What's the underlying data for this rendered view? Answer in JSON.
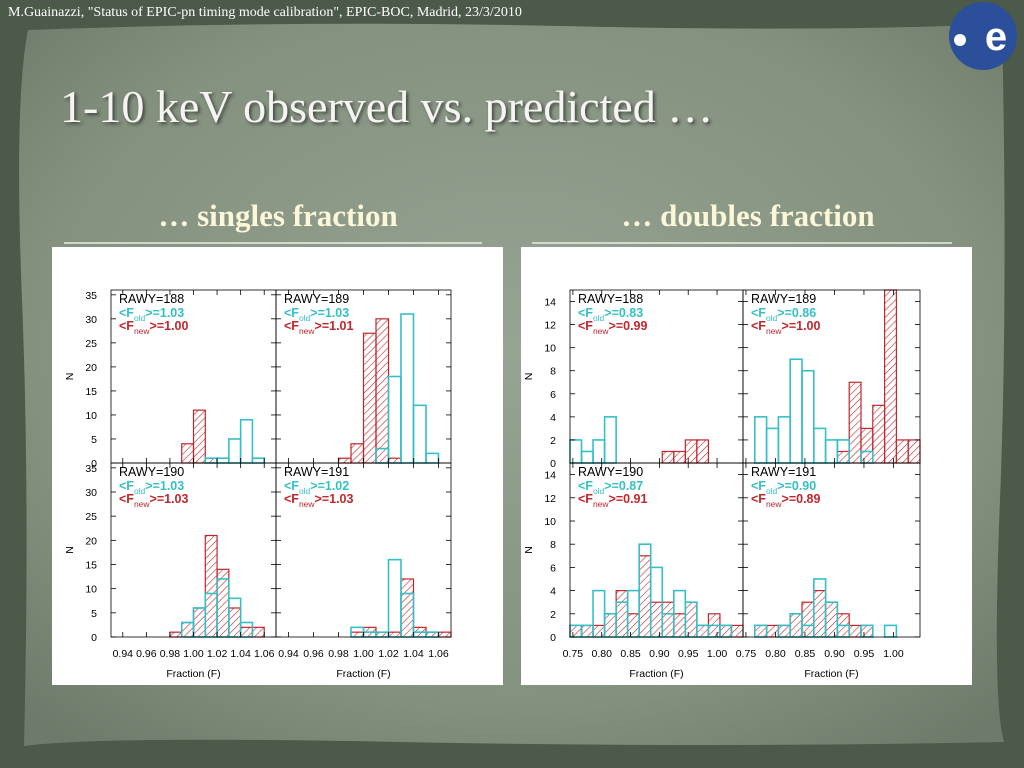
{
  "header": "M.Guainazzi, \"Status of EPIC-pn timing mode calibration\", EPIC-BOC, Madrid, 23/3/2010",
  "title": "1-10 keV observed vs. predicted …",
  "subtitles": [
    "… singles fraction",
    "… doubles fraction"
  ],
  "chart_data": [
    {
      "type": "histogram",
      "annotation": "RAWY=188",
      "ylabel": "N",
      "xtick_labels": false,
      "ytick_labels": true,
      "bins": [
        0.93,
        0.94,
        0.95,
        0.96,
        0.97,
        0.98,
        0.99,
        1.0,
        1.01,
        1.02,
        1.03,
        1.04,
        1.05,
        1.06,
        1.07
      ],
      "xlim": [
        0.93,
        1.07
      ],
      "ylim": [
        0,
        36
      ],
      "xticks": [
        0.94,
        0.96,
        0.98,
        {
          "value": 1,
          "label": "1.00"
        },
        1.02,
        1.04,
        1.06
      ],
      "yticks": [
        0,
        5,
        10,
        15,
        20,
        25,
        30,
        35
      ],
      "series": [
        {
          "label": [
            "<F",
            "old",
            ">=1.03"
          ],
          "color": "#35bfc6",
          "hatch": false,
          "values": [
            0,
            0,
            0,
            0,
            0,
            0,
            0,
            0,
            1,
            1,
            5,
            9,
            1,
            0
          ]
        },
        {
          "label": [
            "<F",
            "new",
            ">=1.00"
          ],
          "color": "#c0272d",
          "hatch": true,
          "values": [
            0,
            0,
            0,
            0,
            0,
            0,
            4,
            11,
            1,
            0,
            0,
            0,
            0,
            0
          ]
        }
      ]
    },
    {
      "type": "histogram",
      "annotation": "RAWY=189",
      "xtick_labels": false,
      "ytick_labels": false,
      "bins": [
        0.93,
        0.94,
        0.95,
        0.96,
        0.97,
        0.98,
        0.99,
        1.0,
        1.01,
        1.02,
        1.03,
        1.04,
        1.05,
        1.06,
        1.07
      ],
      "xlim": [
        0.93,
        1.07
      ],
      "ylim": [
        0,
        36
      ],
      "xticks": [
        0.94,
        0.96,
        0.98,
        {
          "value": 1,
          "label": "1.00"
        },
        1.02,
        1.04,
        1.06
      ],
      "yticks": [
        0,
        5,
        10,
        15,
        20,
        25,
        30,
        35
      ],
      "series": [
        {
          "label": [
            "<F",
            "old",
            ">=1.03"
          ],
          "color": "#35bfc6",
          "hatch": false,
          "values": [
            0,
            0,
            0,
            0,
            0,
            0,
            0,
            0,
            3,
            18,
            31,
            12,
            2,
            0
          ]
        },
        {
          "label": [
            "<F",
            "new",
            ">=1.01"
          ],
          "color": "#c0272d",
          "hatch": true,
          "values": [
            0,
            0,
            0,
            0,
            0,
            1,
            4,
            27,
            30,
            1,
            0,
            0,
            0,
            0
          ]
        }
      ]
    },
    {
      "type": "histogram",
      "annotation": "RAWY=190",
      "ylabel": "N",
      "xlabel": "Fraction (F)",
      "xtick_labels": true,
      "ytick_labels": true,
      "bins": [
        0.93,
        0.94,
        0.95,
        0.96,
        0.97,
        0.98,
        0.99,
        1.0,
        1.01,
        1.02,
        1.03,
        1.04,
        1.05,
        1.06,
        1.07
      ],
      "xlim": [
        0.93,
        1.07
      ],
      "ylim": [
        0,
        36
      ],
      "xticks": [
        0.94,
        0.96,
        0.98,
        {
          "value": 1,
          "label": "1.00"
        },
        1.02,
        1.04,
        1.06
      ],
      "yticks": [
        0,
        5,
        10,
        15,
        20,
        25,
        30,
        35
      ],
      "series": [
        {
          "label": [
            "<F",
            "old",
            ">=1.03"
          ],
          "color": "#35bfc6",
          "hatch": false,
          "values": [
            0,
            0,
            0,
            0,
            0,
            0,
            3,
            6,
            9,
            12,
            8,
            3,
            0,
            0
          ]
        },
        {
          "label": [
            "<F",
            "new",
            ">=1.03"
          ],
          "color": "#c0272d",
          "hatch": true,
          "values": [
            0,
            0,
            0,
            0,
            0,
            1,
            3,
            6,
            21,
            14,
            6,
            2,
            2,
            0
          ]
        }
      ]
    },
    {
      "type": "histogram",
      "annotation": "RAWY=191",
      "xlabel": "Fraction (F)",
      "xtick_labels": true,
      "ytick_labels": false,
      "bins": [
        0.93,
        0.94,
        0.95,
        0.96,
        0.97,
        0.98,
        0.99,
        1.0,
        1.01,
        1.02,
        1.03,
        1.04,
        1.05,
        1.06,
        1.07
      ],
      "xlim": [
        0.93,
        1.07
      ],
      "ylim": [
        0,
        36
      ],
      "xticks": [
        0.94,
        0.96,
        0.98,
        {
          "value": 1,
          "label": "1.00"
        },
        1.02,
        1.04,
        1.06
      ],
      "yticks": [
        0,
        5,
        10,
        15,
        20,
        25,
        30,
        35
      ],
      "series": [
        {
          "label": [
            "<F",
            "old",
            ">=1.02"
          ],
          "color": "#35bfc6",
          "hatch": false,
          "values": [
            0,
            0,
            0,
            0,
            0,
            0,
            2,
            1,
            1,
            16,
            9,
            1,
            1,
            0
          ]
        },
        {
          "label": [
            "<F",
            "new",
            ">=1.03"
          ],
          "color": "#c0272d",
          "hatch": true,
          "values": [
            0,
            0,
            0,
            0,
            0,
            0,
            1,
            2,
            1,
            1,
            12,
            2,
            1,
            1
          ]
        }
      ]
    },
    {
      "type": "histogram",
      "annotation": "RAWY=188",
      "ylabel": "N",
      "xtick_labels": false,
      "ytick_labels": true,
      "bins": [
        0.745,
        0.765,
        0.785,
        0.805,
        0.825,
        0.845,
        0.865,
        0.885,
        0.905,
        0.925,
        0.945,
        0.965,
        0.985,
        1.005,
        1.025,
        1.045
      ],
      "xlim": [
        0.745,
        1.045
      ],
      "ylim": [
        0,
        15
      ],
      "xticks": [
        0.75,
        {
          "value": 0.8,
          "label": "0.80"
        },
        0.85,
        {
          "value": 0.9,
          "label": "0.90"
        },
        0.95,
        {
          "value": 1,
          "label": "1.00"
        }
      ],
      "yticks": [
        0,
        2,
        4,
        6,
        8,
        10,
        12,
        14
      ],
      "series": [
        {
          "label": [
            "<F",
            "old",
            ">=0.83"
          ],
          "color": "#35bfc6",
          "hatch": false,
          "values": [
            2,
            1,
            2,
            4,
            0,
            0,
            0,
            0,
            0,
            0,
            0,
            0,
            0,
            0,
            0
          ]
        },
        {
          "label": [
            "<F",
            "new",
            ">=0.99"
          ],
          "color": "#c0272d",
          "hatch": true,
          "values": [
            0,
            0,
            0,
            0,
            0,
            0,
            0,
            0,
            1,
            1,
            2,
            2,
            0,
            0,
            0
          ]
        }
      ]
    },
    {
      "type": "histogram",
      "annotation": "RAWY=189",
      "xtick_labels": false,
      "ytick_labels": false,
      "bins": [
        0.745,
        0.765,
        0.785,
        0.805,
        0.825,
        0.845,
        0.865,
        0.885,
        0.905,
        0.925,
        0.945,
        0.965,
        0.985,
        1.005,
        1.025,
        1.045
      ],
      "xlim": [
        0.745,
        1.045
      ],
      "ylim": [
        0,
        15
      ],
      "xticks": [
        0.75,
        {
          "value": 0.8,
          "label": "0.80"
        },
        0.85,
        {
          "value": 0.9,
          "label": "0.90"
        },
        0.95,
        {
          "value": 1,
          "label": "1.00"
        }
      ],
      "yticks": [
        0,
        2,
        4,
        6,
        8,
        10,
        12,
        14
      ],
      "series": [
        {
          "label": [
            "<F",
            "old",
            ">=0.86"
          ],
          "color": "#35bfc6",
          "hatch": false,
          "values": [
            0,
            4,
            3,
            4,
            9,
            8,
            3,
            2,
            2,
            0,
            1,
            0,
            0,
            0,
            0
          ]
        },
        {
          "label": [
            "<F",
            "new",
            ">=1.00"
          ],
          "color": "#c0272d",
          "hatch": true,
          "values": [
            0,
            0,
            0,
            0,
            0,
            0,
            0,
            0,
            1,
            7,
            3,
            5,
            15,
            2,
            2
          ]
        }
      ]
    },
    {
      "type": "histogram",
      "annotation": "RAWY=190",
      "ylabel": "N",
      "xlabel": "Fraction (F)",
      "xtick_labels": true,
      "ytick_labels": true,
      "bins": [
        0.745,
        0.765,
        0.785,
        0.805,
        0.825,
        0.845,
        0.865,
        0.885,
        0.905,
        0.925,
        0.945,
        0.965,
        0.985,
        1.005,
        1.025,
        1.045
      ],
      "xlim": [
        0.745,
        1.045
      ],
      "ylim": [
        0,
        15
      ],
      "xticks": [
        0.75,
        {
          "value": 0.8,
          "label": "0.80"
        },
        0.85,
        {
          "value": 0.9,
          "label": "0.90"
        },
        0.95,
        {
          "value": 1,
          "label": "1.00"
        }
      ],
      "yticks": [
        0,
        2,
        4,
        6,
        8,
        10,
        12,
        14
      ],
      "series": [
        {
          "label": [
            "<F",
            "old",
            ">=0.87"
          ],
          "color": "#35bfc6",
          "hatch": false,
          "values": [
            1,
            1,
            4,
            2,
            3,
            4,
            8,
            6,
            2,
            4,
            3,
            1,
            1,
            1,
            0
          ]
        },
        {
          "label": [
            "<F",
            "new",
            ">=0.91"
          ],
          "color": "#c0272d",
          "hatch": true,
          "values": [
            1,
            1,
            1,
            2,
            4,
            2,
            7,
            3,
            3,
            2,
            3,
            1,
            2,
            1,
            1
          ]
        }
      ]
    },
    {
      "type": "histogram",
      "annotation": "RAWY=191",
      "xlabel": "Fraction (F)",
      "xtick_labels": true,
      "ytick_labels": false,
      "bins": [
        0.745,
        0.765,
        0.785,
        0.805,
        0.825,
        0.845,
        0.865,
        0.885,
        0.905,
        0.925,
        0.945,
        0.965,
        0.985,
        1.005,
        1.025,
        1.045
      ],
      "xlim": [
        0.745,
        1.045
      ],
      "ylim": [
        0,
        15
      ],
      "xticks": [
        0.75,
        {
          "value": 0.8,
          "label": "0.80"
        },
        0.85,
        {
          "value": 0.9,
          "label": "0.90"
        },
        0.95,
        {
          "value": 1,
          "label": "1.00"
        }
      ],
      "yticks": [
        0,
        2,
        4,
        6,
        8,
        10,
        12,
        14
      ],
      "series": [
        {
          "label": [
            "<F",
            "old",
            ">=0.90"
          ],
          "color": "#35bfc6",
          "hatch": false,
          "values": [
            0,
            1,
            0,
            1,
            2,
            1,
            5,
            3,
            1,
            0,
            1,
            0,
            1,
            0,
            0
          ]
        },
        {
          "label": [
            "<F",
            "new",
            ">=0.89"
          ],
          "color": "#c0272d",
          "hatch": true,
          "values": [
            0,
            1,
            1,
            1,
            2,
            3,
            4,
            3,
            2,
            1,
            1,
            0,
            0,
            0,
            0
          ]
        }
      ]
    }
  ]
}
